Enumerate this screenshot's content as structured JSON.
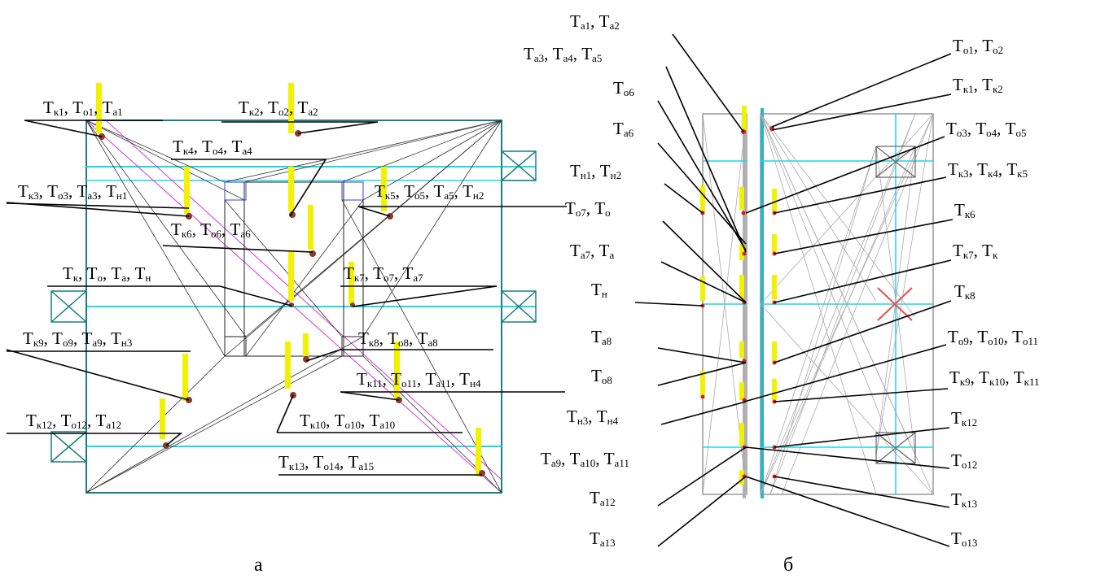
{
  "panel_a": {
    "caption": "а",
    "labels": [
      {
        "id": "a-k1",
        "parts": [
          [
            "Т",
            "к1"
          ],
          [
            "Т",
            "о1"
          ],
          [
            "Т",
            "а1"
          ]
        ]
      },
      {
        "id": "a-k2",
        "parts": [
          [
            "Т",
            "к2"
          ],
          [
            "Т",
            "о2"
          ],
          [
            "Т",
            "а2"
          ]
        ]
      },
      {
        "id": "a-k4",
        "parts": [
          [
            "Т",
            "к4"
          ],
          [
            "Т",
            "о4"
          ],
          [
            "Т",
            "а4"
          ]
        ]
      },
      {
        "id": "a-k3",
        "parts": [
          [
            "Т",
            "к3"
          ],
          [
            "Т",
            "о3"
          ],
          [
            "Т",
            "а3"
          ],
          [
            "Т",
            "н1"
          ]
        ]
      },
      {
        "id": "a-k5",
        "parts": [
          [
            "Т",
            "к5"
          ],
          [
            "Т",
            "о5"
          ],
          [
            "Т",
            "а5"
          ],
          [
            "Т",
            "н2"
          ]
        ]
      },
      {
        "id": "a-k6",
        "parts": [
          [
            "Т",
            "к6"
          ],
          [
            "Т",
            "о6"
          ],
          [
            "Т",
            "а6"
          ]
        ]
      },
      {
        "id": "a-k",
        "parts": [
          [
            "Т",
            "к"
          ],
          [
            "Т",
            "о"
          ],
          [
            "Т",
            "а"
          ],
          [
            "Т",
            "н"
          ]
        ]
      },
      {
        "id": "a-k7",
        "parts": [
          [
            "Т",
            "к7"
          ],
          [
            "Т",
            "о7"
          ],
          [
            "Т",
            "а7"
          ]
        ]
      },
      {
        "id": "a-k9",
        "parts": [
          [
            "Т",
            "к9"
          ],
          [
            "Т",
            "о9"
          ],
          [
            "Т",
            "а9"
          ],
          [
            "Т",
            "н3"
          ]
        ]
      },
      {
        "id": "a-k8",
        "parts": [
          [
            "Т",
            "к8"
          ],
          [
            "Т",
            "о8"
          ],
          [
            "Т",
            "а8"
          ]
        ]
      },
      {
        "id": "a-k11",
        "parts": [
          [
            "Т",
            "к11"
          ],
          [
            "Т",
            "о11"
          ],
          [
            "Т",
            "а11"
          ],
          [
            "Т",
            "н4"
          ]
        ]
      },
      {
        "id": "a-k12",
        "parts": [
          [
            "Т",
            "к12"
          ],
          [
            "Т",
            "о12"
          ],
          [
            "Т",
            "а12"
          ]
        ]
      },
      {
        "id": "a-k10",
        "parts": [
          [
            "Т",
            "к10"
          ],
          [
            "Т",
            "о10"
          ],
          [
            "Т",
            "а10"
          ]
        ]
      },
      {
        "id": "a-k13",
        "parts": [
          [
            "Т",
            "к13"
          ],
          [
            "Т",
            "о14"
          ],
          [
            "Т",
            "а15"
          ]
        ]
      }
    ]
  },
  "panel_b": {
    "caption": "б",
    "labels": [
      {
        "id": "b-a1",
        "parts": [
          [
            "Т",
            "а1"
          ],
          [
            "Т",
            "а2"
          ]
        ]
      },
      {
        "id": "b-a3",
        "parts": [
          [
            "Т",
            "а3"
          ],
          [
            "Т",
            "а4"
          ],
          [
            "Т",
            "а5"
          ]
        ]
      },
      {
        "id": "b-o6",
        "parts": [
          [
            "Т",
            "о6"
          ]
        ]
      },
      {
        "id": "b-a6",
        "parts": [
          [
            "Т",
            "а6"
          ]
        ]
      },
      {
        "id": "b-n1",
        "parts": [
          [
            "Т",
            "н1"
          ],
          [
            "Т",
            "н2"
          ]
        ]
      },
      {
        "id": "b-o7",
        "parts": [
          [
            "Т",
            "о7"
          ],
          [
            "Т",
            "о"
          ]
        ]
      },
      {
        "id": "b-a7",
        "parts": [
          [
            "Т",
            "а7"
          ],
          [
            "Т",
            "а"
          ]
        ]
      },
      {
        "id": "b-n",
        "parts": [
          [
            "Т",
            "н"
          ]
        ]
      },
      {
        "id": "b-a8",
        "parts": [
          [
            "Т",
            "а8"
          ]
        ]
      },
      {
        "id": "b-o8",
        "parts": [
          [
            "Т",
            "о8"
          ]
        ]
      },
      {
        "id": "b-n3",
        "parts": [
          [
            "Т",
            "н3"
          ],
          [
            "Т",
            "н4"
          ]
        ]
      },
      {
        "id": "b-a9",
        "parts": [
          [
            "Т",
            "а9"
          ],
          [
            "Т",
            "а10"
          ],
          [
            "Т",
            "а11"
          ]
        ]
      },
      {
        "id": "b-a12",
        "parts": [
          [
            "Т",
            "а12"
          ]
        ]
      },
      {
        "id": "b-a13",
        "parts": [
          [
            "Т",
            "а13"
          ]
        ]
      },
      {
        "id": "b-o1",
        "parts": [
          [
            "Т",
            "о1"
          ],
          [
            "Т",
            "о2"
          ]
        ]
      },
      {
        "id": "b-k1",
        "parts": [
          [
            "Т",
            "к1"
          ],
          [
            "Т",
            "к2"
          ]
        ]
      },
      {
        "id": "b-o3",
        "parts": [
          [
            "Т",
            "о3"
          ],
          [
            "Т",
            "о4"
          ],
          [
            "Т",
            "о5"
          ]
        ]
      },
      {
        "id": "b-k3",
        "parts": [
          [
            "Т",
            "к3"
          ],
          [
            "Т",
            "к4"
          ],
          [
            "Т",
            "к5"
          ]
        ]
      },
      {
        "id": "b-k6",
        "parts": [
          [
            "Т",
            "к6"
          ]
        ]
      },
      {
        "id": "b-k7",
        "parts": [
          [
            "Т",
            "к7"
          ],
          [
            "Т",
            "к"
          ]
        ]
      },
      {
        "id": "b-k8",
        "parts": [
          [
            "Т",
            "к8"
          ]
        ]
      },
      {
        "id": "b-o9",
        "parts": [
          [
            "Т",
            "о9"
          ],
          [
            "Т",
            "о10"
          ],
          [
            "Т",
            "о11"
          ]
        ]
      },
      {
        "id": "b-k9",
        "parts": [
          [
            "Т",
            "к9"
          ],
          [
            "Т",
            "к10"
          ],
          [
            "Т",
            "к11"
          ]
        ]
      },
      {
        "id": "b-k12",
        "parts": [
          [
            "Т",
            "к12"
          ]
        ]
      },
      {
        "id": "b-o12",
        "parts": [
          [
            "Т",
            "о12"
          ]
        ]
      },
      {
        "id": "b-k13",
        "parts": [
          [
            "Т",
            "к13"
          ]
        ]
      },
      {
        "id": "b-o13",
        "parts": [
          [
            "Т",
            "о13"
          ]
        ]
      }
    ]
  }
}
